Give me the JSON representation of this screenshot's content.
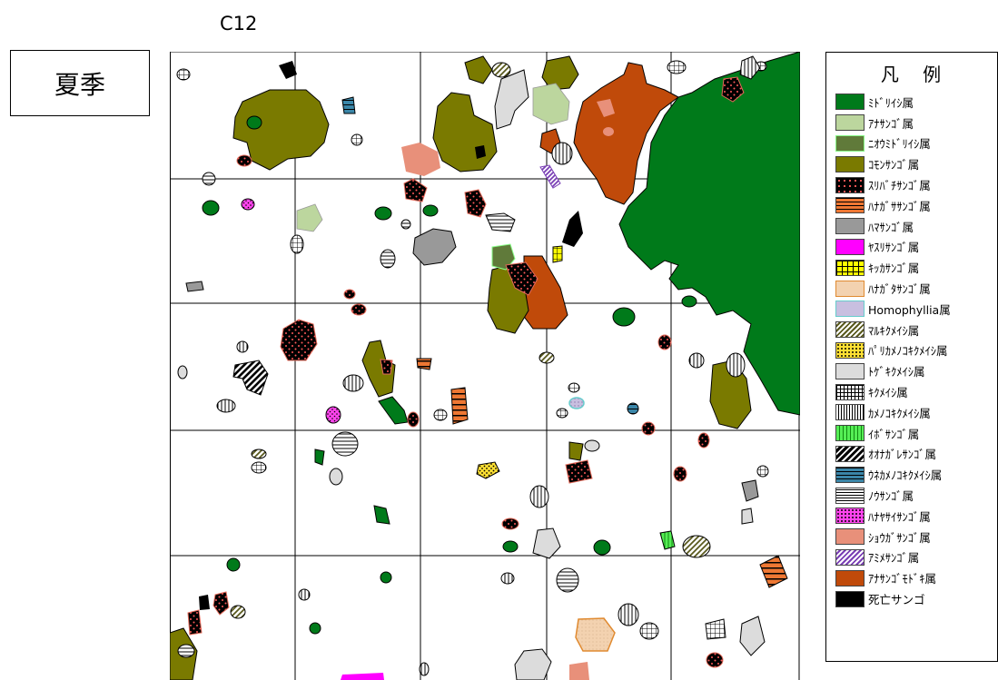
{
  "station_code": "C12",
  "season": "夏季",
  "legend": {
    "title": "凡 例",
    "items": [
      {
        "label": "ﾐﾄﾞﾘｲｼ属",
        "pattern": "green"
      },
      {
        "label": "ｱﾅｻﾝｺﾞ属",
        "pattern": "lightgreen"
      },
      {
        "label": "ﾆｵｳﾐﾄﾞﾘｲｼ属",
        "pattern": "mossgreen"
      },
      {
        "label": "ｺﾓﾝｻﾝｺﾞ属",
        "pattern": "olive"
      },
      {
        "label": "ｽﾘﾊﾞﾁｻﾝｺﾞ属",
        "pattern": "blackdots"
      },
      {
        "label": "ﾊﾅｶﾞｻｻﾝｺﾞ属",
        "pattern": "orangestripes"
      },
      {
        "label": "ﾊﾏｻﾝｺﾞ属",
        "pattern": "gray"
      },
      {
        "label": "ﾔｽﾘｻﾝｺﾞ属",
        "pattern": "magenta"
      },
      {
        "label": "ｷｯｶｻﾝｺﾞ属",
        "pattern": "yellowgrid"
      },
      {
        "label": "ﾊﾅｶﾞﾀｻﾝｺﾞ属",
        "pattern": "peach"
      },
      {
        "label": "Homophyllia属",
        "pattern": "lavender"
      },
      {
        "label": "ﾏﾙｷｸﾒｲｼ属",
        "pattern": "olivehatch"
      },
      {
        "label": "ﾊﾟﾘｶﾒﾉｺｷｸﾒｲｼ属",
        "pattern": "yellowdots"
      },
      {
        "label": "ﾄｹﾞｷｸﾒｲｼ属",
        "pattern": "lightgray"
      },
      {
        "label": "ｷｸﾒｲｼ属",
        "pattern": "grid"
      },
      {
        "label": "ｶﾒﾉｺｷｸﾒｲｼ属",
        "pattern": "vlines"
      },
      {
        "label": "ｲﾎﾞｻﾝｺﾞ属",
        "pattern": "brightgreen"
      },
      {
        "label": "ｵｵﾅｶﾞﾚｻﾝｺﾞ属",
        "pattern": "blackdiag"
      },
      {
        "label": "ｳﾈｶﾒﾉｺｷｸﾒｲｼ属",
        "pattern": "tealstripes"
      },
      {
        "label": "ﾉｳｻﾝｺﾞ属",
        "pattern": "hlines"
      },
      {
        "label": "ﾊﾅﾔｻｲｻﾝｺﾞ属",
        "pattern": "pinkdots"
      },
      {
        "label": "ｼｮｳｶﾞｻﾝｺﾞ属",
        "pattern": "salmon"
      },
      {
        "label": "ｱﾐﾒｻﾝｺﾞ属",
        "pattern": "purplediag"
      },
      {
        "label": "ｱﾅｻﾝｺﾞﾓﾄﾞｷ属",
        "pattern": "rust"
      },
      {
        "label": "死亡サンゴ",
        "pattern": "black"
      }
    ]
  },
  "map": {
    "grid_columns": 5,
    "grid_rows": 5
  }
}
